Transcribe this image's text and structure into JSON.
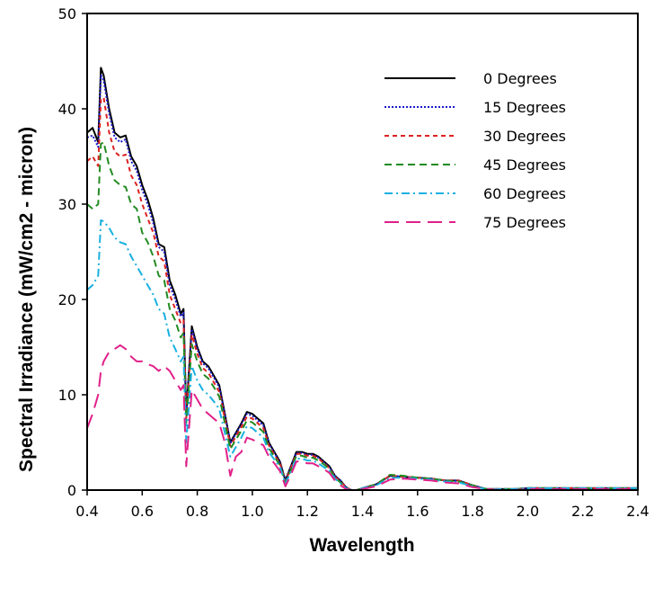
{
  "chart_data": {
    "type": "line",
    "title": "",
    "xlabel": "Wavelength",
    "ylabel": "Spectral Irradiance (mW/cm2 - micron)",
    "xlim": [
      0.4,
      2.4
    ],
    "ylim": [
      0,
      50
    ],
    "xticks": [
      "0.4",
      "0.6",
      "0.8",
      "1.0",
      "1.2",
      "1.4",
      "1.6",
      "1.8",
      "2.0",
      "2.2",
      "2.4"
    ],
    "yticks": [
      "0",
      "10",
      "20",
      "30",
      "40",
      "50"
    ],
    "grid": false,
    "legend_position": "top-right",
    "x": [
      0.4,
      0.42,
      0.44,
      0.45,
      0.46,
      0.48,
      0.5,
      0.52,
      0.54,
      0.56,
      0.58,
      0.6,
      0.62,
      0.64,
      0.66,
      0.68,
      0.7,
      0.72,
      0.74,
      0.75,
      0.76,
      0.78,
      0.8,
      0.82,
      0.84,
      0.86,
      0.88,
      0.9,
      0.92,
      0.94,
      0.96,
      0.98,
      1.0,
      1.02,
      1.04,
      1.06,
      1.08,
      1.1,
      1.12,
      1.14,
      1.16,
      1.18,
      1.2,
      1.22,
      1.24,
      1.26,
      1.28,
      1.3,
      1.32,
      1.34,
      1.36,
      1.38,
      1.4,
      1.45,
      1.5,
      1.55,
      1.6,
      1.65,
      1.7,
      1.75,
      1.8,
      1.85,
      1.9,
      1.95,
      2.0,
      2.1,
      2.2,
      2.3,
      2.4
    ],
    "series": [
      {
        "name": "0 Degrees",
        "color": "#000000",
        "dash": "solid",
        "values": [
          37.5,
          38.0,
          36.5,
          44.3,
          43.5,
          40.0,
          37.5,
          37.0,
          37.2,
          35.0,
          34.0,
          32.0,
          30.5,
          28.5,
          25.8,
          25.5,
          22.0,
          20.5,
          18.5,
          19.0,
          8.0,
          17.2,
          15.0,
          13.5,
          13.0,
          12.0,
          11.0,
          8.0,
          5.0,
          6.0,
          7.0,
          8.2,
          8.0,
          7.5,
          7.0,
          5.0,
          4.0,
          3.0,
          1.0,
          2.5,
          4.0,
          4.0,
          3.8,
          3.8,
          3.5,
          3.0,
          2.5,
          1.5,
          1.0,
          0.3,
          0.0,
          0.0,
          0.2,
          0.6,
          1.5,
          1.4,
          1.3,
          1.2,
          1.0,
          1.0,
          0.5,
          0.1,
          0.1,
          0.1,
          0.2,
          0.2,
          0.2,
          0.2,
          0.2
        ]
      },
      {
        "name": "15 Degrees",
        "color": "#1a1ac8",
        "dash": "dotted",
        "values": [
          37.0,
          37.2,
          36.0,
          43.5,
          43.0,
          39.5,
          37.0,
          36.5,
          36.8,
          34.5,
          33.5,
          31.5,
          30.0,
          28.0,
          25.5,
          25.0,
          21.5,
          20.0,
          18.2,
          18.6,
          7.8,
          16.9,
          14.8,
          13.3,
          12.8,
          11.8,
          10.8,
          7.9,
          4.9,
          5.9,
          6.9,
          8.0,
          7.8,
          7.3,
          6.8,
          4.9,
          3.9,
          2.9,
          1.0,
          2.4,
          3.9,
          3.9,
          3.7,
          3.7,
          3.4,
          2.9,
          2.4,
          1.5,
          1.0,
          0.3,
          0.0,
          0.0,
          0.2,
          0.6,
          1.5,
          1.4,
          1.3,
          1.2,
          1.0,
          1.0,
          0.5,
          0.1,
          0.1,
          0.1,
          0.2,
          0.2,
          0.2,
          0.2,
          0.2
        ]
      },
      {
        "name": "30 Degrees",
        "color": "#dd2222",
        "dash": "short-dash",
        "values": [
          34.5,
          35.0,
          34.0,
          41.0,
          41.2,
          37.5,
          35.5,
          35.0,
          35.2,
          33.0,
          32.0,
          30.0,
          28.5,
          27.0,
          24.5,
          24.0,
          20.5,
          19.0,
          17.5,
          17.8,
          7.5,
          16.3,
          14.3,
          12.8,
          12.3,
          11.3,
          10.3,
          7.5,
          4.6,
          5.6,
          6.6,
          7.7,
          7.5,
          7.0,
          6.5,
          4.7,
          3.7,
          2.8,
          0.9,
          2.3,
          3.8,
          3.8,
          3.6,
          3.6,
          3.3,
          2.8,
          2.3,
          1.4,
          0.9,
          0.3,
          0.0,
          0.0,
          0.2,
          0.6,
          1.5,
          1.4,
          1.3,
          1.2,
          1.0,
          1.0,
          0.5,
          0.1,
          0.1,
          0.1,
          0.2,
          0.2,
          0.2,
          0.2,
          0.2
        ]
      },
      {
        "name": "45 Degrees",
        "color": "#228b22",
        "dash": "dash",
        "values": [
          30.0,
          29.5,
          30.0,
          36.3,
          36.5,
          34.0,
          32.5,
          32.0,
          31.8,
          30.0,
          29.5,
          27.0,
          26.0,
          24.5,
          22.5,
          22.0,
          19.0,
          17.8,
          16.0,
          16.5,
          7.0,
          15.3,
          13.5,
          12.2,
          11.7,
          10.8,
          9.8,
          7.0,
          4.3,
          5.3,
          6.2,
          7.3,
          7.1,
          6.6,
          6.1,
          4.4,
          3.5,
          2.6,
          0.8,
          2.1,
          3.6,
          3.6,
          3.4,
          3.4,
          3.1,
          2.7,
          2.2,
          1.3,
          0.8,
          0.2,
          0.0,
          0.0,
          0.2,
          0.6,
          1.6,
          1.5,
          1.3,
          1.2,
          1.0,
          0.9,
          0.5,
          0.1,
          0.1,
          0.1,
          0.2,
          0.2,
          0.2,
          0.2,
          0.2
        ]
      },
      {
        "name": "60 Degrees",
        "color": "#1ab0e0",
        "dash": "dash-dot",
        "values": [
          21.0,
          21.5,
          22.5,
          28.3,
          28.2,
          27.5,
          26.5,
          26.0,
          25.8,
          24.5,
          23.5,
          22.5,
          21.5,
          20.5,
          19.0,
          18.5,
          16.0,
          14.8,
          13.5,
          14.0,
          5.0,
          13.0,
          11.5,
          10.5,
          10.0,
          9.3,
          8.5,
          6.0,
          3.5,
          4.5,
          5.5,
          6.7,
          6.5,
          6.0,
          5.5,
          4.0,
          3.2,
          2.4,
          0.7,
          1.9,
          3.3,
          3.3,
          3.1,
          3.1,
          2.8,
          2.4,
          2.0,
          1.2,
          0.7,
          0.2,
          0.0,
          0.0,
          0.2,
          0.5,
          1.3,
          1.3,
          1.2,
          1.1,
          0.9,
          0.8,
          0.4,
          0.1,
          0.1,
          0.1,
          0.2,
          0.2,
          0.2,
          0.2,
          0.2
        ]
      },
      {
        "name": "75 Degrees",
        "color": "#e0208a",
        "dash": "long-dash",
        "values": [
          6.5,
          8.0,
          10.0,
          12.5,
          13.5,
          14.5,
          14.8,
          15.2,
          14.8,
          14.0,
          13.5,
          13.5,
          13.2,
          13.0,
          12.5,
          13.0,
          12.5,
          11.5,
          10.5,
          11.0,
          2.5,
          10.5,
          9.5,
          8.5,
          8.0,
          7.5,
          7.0,
          5.0,
          1.5,
          3.5,
          4.0,
          5.5,
          5.3,
          5.0,
          4.7,
          3.5,
          2.8,
          2.0,
          0.4,
          1.6,
          3.0,
          3.0,
          2.8,
          2.8,
          2.5,
          2.2,
          1.8,
          1.0,
          0.5,
          0.1,
          0.0,
          0.0,
          0.1,
          0.4,
          1.1,
          1.2,
          1.1,
          1.0,
          0.8,
          0.7,
          0.3,
          0.1,
          0.0,
          0.0,
          0.1,
          0.1,
          0.1,
          0.1,
          0.1
        ]
      }
    ]
  }
}
